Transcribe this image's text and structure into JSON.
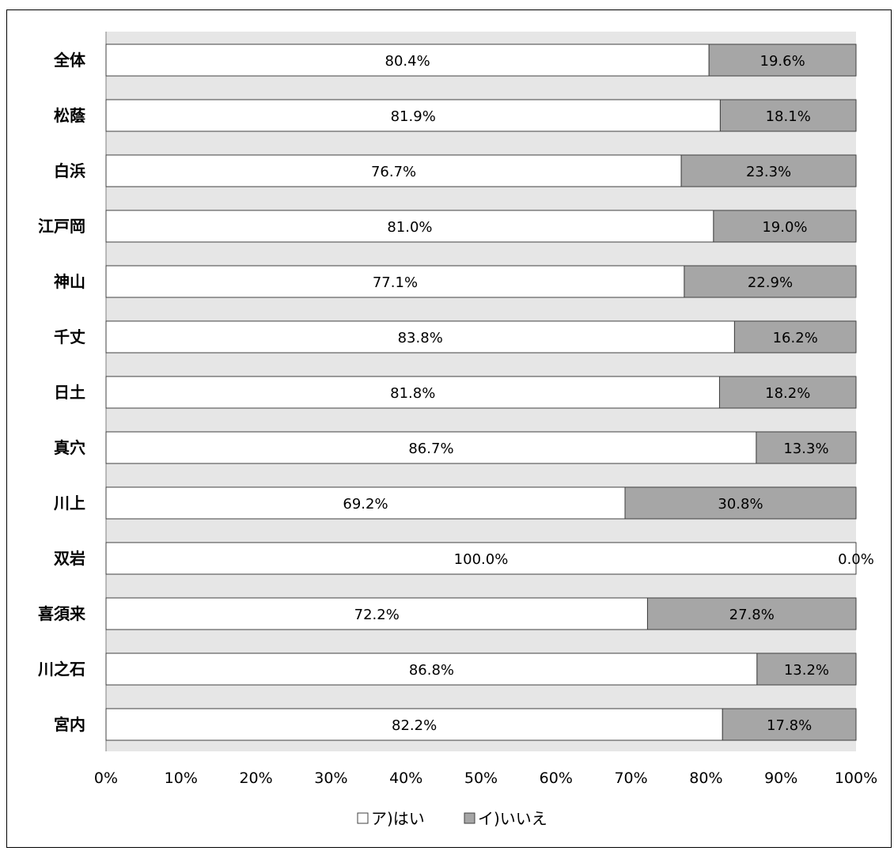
{
  "chart_data": {
    "type": "bar",
    "orientation": "horizontal",
    "stacked": "percent",
    "categories": [
      "全体",
      "松蔭",
      "白浜",
      "江戸岡",
      "神山",
      "千丈",
      "日土",
      "真穴",
      "川上",
      "双岩",
      "喜須来",
      "川之石",
      "宮内"
    ],
    "series": [
      {
        "name": "ア)はい",
        "color": "#ffffff",
        "values": [
          80.4,
          81.9,
          76.7,
          81.0,
          77.1,
          83.8,
          81.8,
          86.7,
          69.2,
          100.0,
          72.2,
          86.8,
          82.2
        ],
        "labels": [
          "80.4%",
          "81.9%",
          "76.7%",
          "81.0%",
          "77.1%",
          "83.8%",
          "81.8%",
          "86.7%",
          "69.2%",
          "100.0%",
          "72.2%",
          "86.8%",
          "82.2%"
        ]
      },
      {
        "name": "イ)いいえ",
        "color": "#a6a6a6",
        "values": [
          19.6,
          18.1,
          23.3,
          19.0,
          22.9,
          16.2,
          18.2,
          13.3,
          30.8,
          0.0,
          27.8,
          13.2,
          17.8
        ],
        "labels": [
          "19.6%",
          "18.1%",
          "23.3%",
          "19.0%",
          "22.9%",
          "16.2%",
          "18.2%",
          "13.3%",
          "30.8%",
          "0.0%",
          "27.8%",
          "13.2%",
          "17.8%"
        ]
      }
    ],
    "xlim": [
      0,
      100
    ],
    "xticks": [
      "0%",
      "10%",
      "20%",
      "30%",
      "40%",
      "50%",
      "60%",
      "70%",
      "80%",
      "90%",
      "100%"
    ],
    "legend_position": "bottom",
    "plot_background": "#e6e6e6"
  }
}
